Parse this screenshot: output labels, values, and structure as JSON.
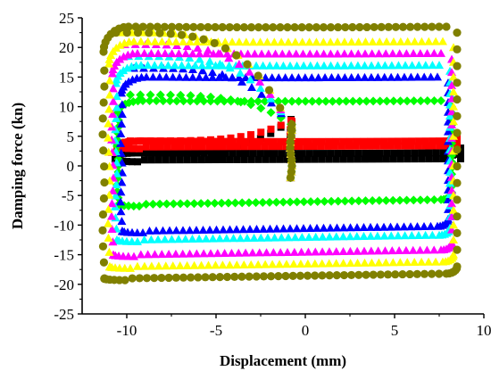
{
  "chart_data": {
    "type": "scatter",
    "title": "",
    "xlabel": "Displacement (mm)",
    "ylabel": "Damping force (kn)",
    "xlim": [
      -12.5,
      10
    ],
    "ylim": [
      -25,
      25
    ],
    "xticks": [
      -10,
      -5,
      0,
      5,
      10
    ],
    "yticks": [
      -25,
      -20,
      -15,
      -10,
      -5,
      0,
      5,
      10,
      15,
      20,
      25
    ],
    "grid": false,
    "legend": "none",
    "series": [
      {
        "color": "#000000",
        "marker": "square",
        "loop": {
          "xmin": -10.6,
          "xmax": 8.7,
          "upper": 2.2,
          "lower": 1.0,
          "retract": -0.8,
          "extend_top": 2.2
        }
      },
      {
        "color": "#ff0000",
        "marker": "square",
        "loop": {
          "xmin": -10.5,
          "xmax": 8.5,
          "upper": 4.2,
          "lower": 3.2,
          "retract": -0.8,
          "extend_top": 4.2
        }
      },
      {
        "color": "#00ff00",
        "marker": "diamond",
        "loop": {
          "xmin": -10.5,
          "xmax": 8.2,
          "upper": 11.0,
          "lower": -6.5,
          "retract": -0.8,
          "extend_top": 12.0
        }
      },
      {
        "color": "#0000ff",
        "marker": "triangle",
        "loop": {
          "xmin": -10.3,
          "xmax": 8.0,
          "upper": 15.0,
          "lower": -11.0,
          "retract": -0.8,
          "extend_top": 16.5
        }
      },
      {
        "color": "#00ffff",
        "marker": "triangle",
        "loop": {
          "xmin": -10.6,
          "xmax": 8.1,
          "upper": 17.0,
          "lower": -12.5,
          "retract": -0.8,
          "extend_top": 18.5
        }
      },
      {
        "color": "#ff00ff",
        "marker": "triangle",
        "loop": {
          "xmin": -10.8,
          "xmax": 8.2,
          "upper": 19.0,
          "lower": -15.0,
          "retract": -0.8,
          "extend_top": 20.5
        }
      },
      {
        "color": "#ffff00",
        "marker": "triangle",
        "loop": {
          "xmin": -11.0,
          "xmax": 8.3,
          "upper": 21.0,
          "lower": -17.0,
          "retract": -0.8,
          "extend_top": 22.5
        }
      },
      {
        "color": "#808000",
        "marker": "circle",
        "loop": {
          "xmin": -11.3,
          "xmax": 8.5,
          "upper": 23.5,
          "lower": -19.0,
          "retract": -0.8,
          "extend_top": 22.5
        }
      }
    ]
  }
}
